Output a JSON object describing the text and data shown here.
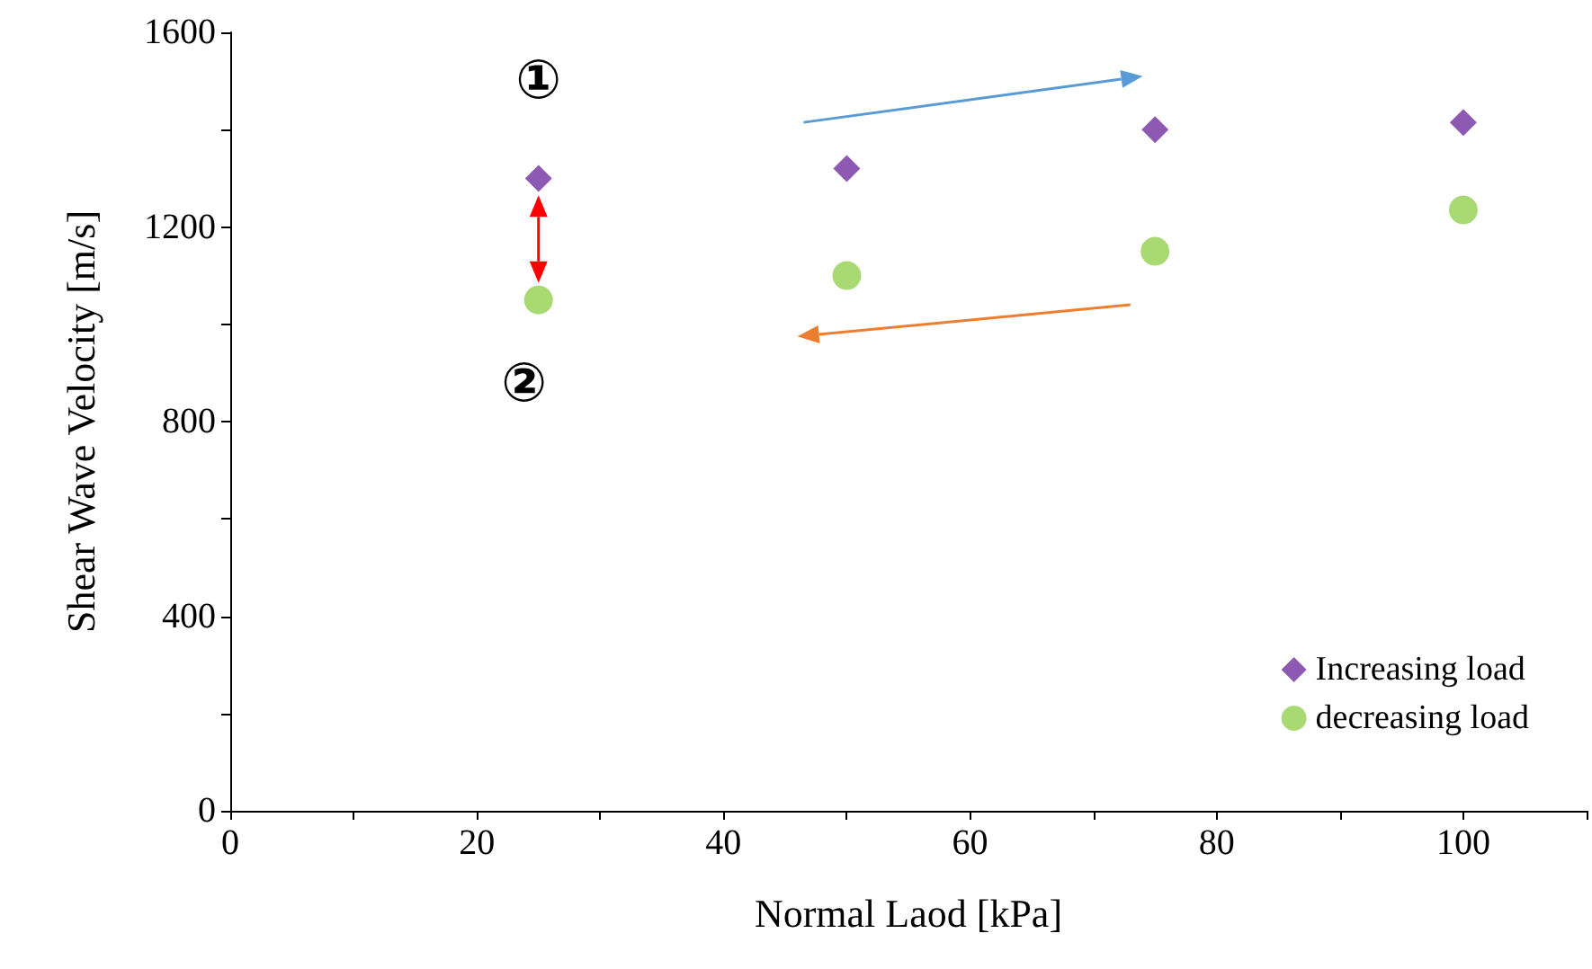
{
  "chart_data": {
    "type": "scatter",
    "xlabel": "Normal Laod [kPa]",
    "ylabel": "Shear Wave Velocity [m/s]",
    "x": [
      25,
      50,
      75,
      100
    ],
    "series": [
      {
        "name": "Increasing load",
        "color": "#7030a0",
        "marker": "diamond",
        "values": [
          1300,
          1320,
          1400,
          1415
        ]
      },
      {
        "name": "decreasing load",
        "color": "#92d050",
        "marker": "circle",
        "values": [
          1050,
          1100,
          1150,
          1235
        ]
      }
    ],
    "xlim": [
      0,
      110
    ],
    "xticks": [
      0,
      {
        "value": 10,
        "label": null
      },
      20,
      {
        "value": 30,
        "label": null
      },
      40,
      {
        "value": 50,
        "label": null
      },
      60,
      {
        "value": 70,
        "label": null
      },
      80,
      {
        "value": 90,
        "label": null
      },
      100,
      {
        "value": 110,
        "label": null
      }
    ],
    "ylim": [
      0,
      1600
    ],
    "yticks": [
      0,
      {
        "value": 200,
        "label": null
      },
      400,
      {
        "value": 600,
        "label": null
      },
      800,
      {
        "value": 1000,
        "label": null
      },
      1200,
      {
        "value": 1400,
        "label": null
      },
      1600
    ],
    "annotations": [
      "①",
      "②"
    ],
    "grid": false,
    "legend": "bottom right"
  }
}
